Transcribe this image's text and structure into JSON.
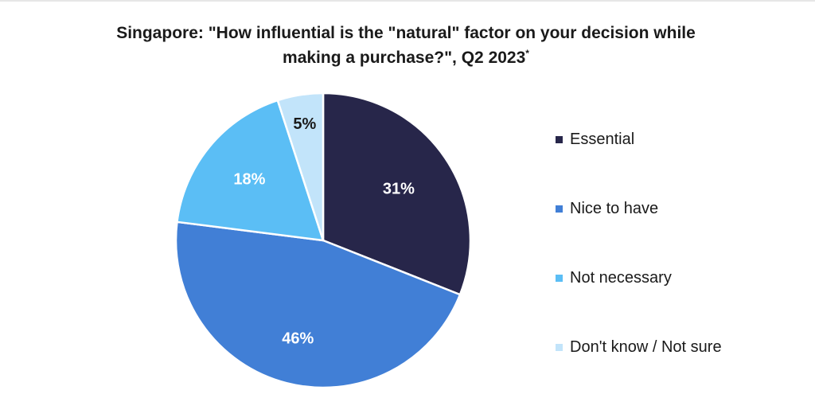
{
  "chart_data": {
    "type": "pie",
    "title": "Singapore: \"How influential is the \"natural\" factor on your decision while making a purchase?\", Q2 2023",
    "title_line1": "Singapore: \"How influential is the \"natural\" factor on your decision while",
    "title_line2": "making a purchase?\", Q2 2023",
    "title_footnote_mark": "*",
    "legend_position": "right",
    "slices": [
      {
        "name": "Essential",
        "value": 31,
        "label": "31%",
        "color": "#27264a",
        "label_color": "#ffffff"
      },
      {
        "name": "Nice to have",
        "value": 46,
        "label": "46%",
        "color": "#417fd6",
        "label_color": "#ffffff"
      },
      {
        "name": "Not necessary",
        "value": 18,
        "label": "18%",
        "color": "#5bbef5",
        "label_color": "#ffffff"
      },
      {
        "name": "Don't know / Not sure",
        "value": 5,
        "label": "5%",
        "color": "#c2e4fa",
        "label_color": "#1a1a1a"
      }
    ]
  }
}
